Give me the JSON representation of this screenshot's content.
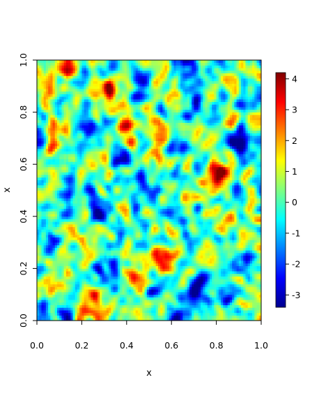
{
  "chart_data": {
    "type": "heatmap",
    "title": "",
    "xlabel": "x",
    "ylabel": "x",
    "xlim": [
      0,
      1
    ],
    "ylim": [
      0,
      1
    ],
    "x_ticks": [
      "0.0",
      "0.2",
      "0.4",
      "0.6",
      "0.8",
      "1.0"
    ],
    "y_ticks": [
      "0.0",
      "0.2",
      "0.4",
      "0.6",
      "0.8",
      "1.0"
    ],
    "grid_size": 100,
    "color_scale": {
      "name": "jet",
      "range": [
        -3.4,
        4.2
      ],
      "ticks": [
        "-3",
        "-2",
        "-1",
        "0",
        "1",
        "2",
        "3",
        "4"
      ],
      "colors": [
        "#00008F",
        "#0000FF",
        "#0080FF",
        "#00FFFF",
        "#80FF80",
        "#FFFF00",
        "#FF8000",
        "#FF0000",
        "#800000"
      ]
    },
    "hotspots": [
      {
        "x": 0.31,
        "y": 0.87,
        "value": 3.5
      },
      {
        "x": 0.04,
        "y": 0.91,
        "value": 3.0
      },
      {
        "x": 0.79,
        "y": 0.56,
        "value": 3.4
      },
      {
        "x": 0.83,
        "y": 0.57,
        "value": 3.0
      },
      {
        "x": 0.54,
        "y": 0.66,
        "value": 2.8
      },
      {
        "x": 0.42,
        "y": 0.16,
        "value": 2.6
      },
      {
        "x": 0.57,
        "y": 0.24,
        "value": 2.5
      },
      {
        "x": 0.82,
        "y": 0.4,
        "value": 2.6
      },
      {
        "x": 0.08,
        "y": 0.7,
        "value": 2.4
      },
      {
        "x": 0.41,
        "y": 0.73,
        "value": 2.4
      },
      {
        "x": 0.11,
        "y": 0.98,
        "value": 2.2
      },
      {
        "x": 0.93,
        "y": 0.98,
        "value": 2.0
      },
      {
        "x": 0.25,
        "y": 0.07,
        "value": 2.2
      },
      {
        "x": 0.18,
        "y": 0.44,
        "value": 2.0
      }
    ],
    "coldspots": [
      {
        "x": 0.5,
        "y": 0.52,
        "value": -3.2
      },
      {
        "x": 0.39,
        "y": 0.62,
        "value": -3.0
      },
      {
        "x": 0.46,
        "y": 0.93,
        "value": -2.9
      },
      {
        "x": 0.68,
        "y": 0.99,
        "value": -2.9
      },
      {
        "x": 0.23,
        "y": 0.74,
        "value": -2.8
      },
      {
        "x": 0.14,
        "y": 0.47,
        "value": -2.6
      },
      {
        "x": 0.89,
        "y": 0.69,
        "value": -2.6
      },
      {
        "x": 0.71,
        "y": 0.82,
        "value": -2.5
      },
      {
        "x": 0.3,
        "y": 0.2,
        "value": -2.4
      },
      {
        "x": 0.68,
        "y": 0.1,
        "value": -2.5
      },
      {
        "x": 0.92,
        "y": 0.22,
        "value": -2.2
      },
      {
        "x": 0.07,
        "y": 0.28,
        "value": -2.2
      },
      {
        "x": 0.6,
        "y": 0.4,
        "value": -2.2
      },
      {
        "x": 0.28,
        "y": 0.44,
        "value": -2.0
      },
      {
        "x": 0.85,
        "y": 0.12,
        "value": -2.0
      },
      {
        "x": 0.02,
        "y": 0.01,
        "value": -2.1
      },
      {
        "x": 0.12,
        "y": 0.01,
        "value": -2.0
      }
    ]
  }
}
